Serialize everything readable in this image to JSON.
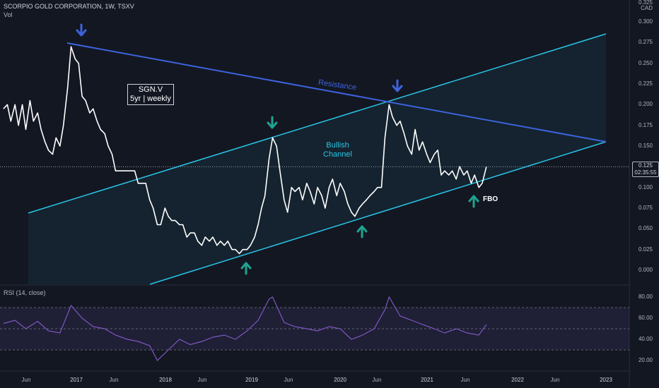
{
  "header": {
    "symbol": "SCORPIO GOLD CORPORATION, 1W, TSXV",
    "vol": "Vol"
  },
  "price_axis": {
    "currency": "CAD",
    "top_tick": "0.325",
    "ticks": [
      "0.300",
      "0.275",
      "0.250",
      "0.225",
      "0.200",
      "0.175",
      "0.150",
      "0.125",
      "0.100",
      "0.075",
      "0.050",
      "0.025",
      "0.000"
    ]
  },
  "price_tag": {
    "value": "0.125",
    "countdown": "02:35:55"
  },
  "annotations": {
    "box_ticker": "SGN.V",
    "box_sub": "5yr | weekly",
    "resistance": "Resistance",
    "channel_line1": "Bullish",
    "channel_line2": "Channel",
    "fbo": "FBO"
  },
  "rsi": {
    "title": "RSI (14, close)",
    "ticks": [
      "80.00",
      "60.00",
      "40.00",
      "20.00"
    ],
    "band_levels": [
      70,
      50,
      30
    ]
  },
  "x_axis": [
    {
      "label": "Jun",
      "year": false
    },
    {
      "label": "2017",
      "year": true
    },
    {
      "label": "Jun",
      "year": false
    },
    {
      "label": "2018",
      "year": true
    },
    {
      "label": "Jun",
      "year": false
    },
    {
      "label": "2019",
      "year": true
    },
    {
      "label": "Jun",
      "year": false
    },
    {
      "label": "2020",
      "year": true
    },
    {
      "label": "Jun",
      "year": false
    },
    {
      "label": "2021",
      "year": true
    },
    {
      "label": "Jun",
      "year": false
    },
    {
      "label": "2022",
      "year": true
    },
    {
      "label": "Jun",
      "year": false
    },
    {
      "label": "2023",
      "year": true
    }
  ],
  "colors": {
    "price_line": "#ffffff",
    "resistance": "#3d63dd",
    "channel": "#29c5e6",
    "arrow_down_blue": "#3d63dd",
    "arrow_teal": "#1fa38f",
    "rsi_line": "#7e57c2",
    "rsi_band": "#7e57c2"
  },
  "chart_data": {
    "type": "line",
    "title": "SCORPIO GOLD CORPORATION, 1W, TSXV",
    "ylim": [
      0.0,
      0.325
    ],
    "x_range": [
      "2016-04",
      "2023-02"
    ],
    "series": [
      {
        "name": "SGN.V",
        "points": [
          [
            "2016-04-15",
            0.195
          ],
          [
            "2016-05-01",
            0.2
          ],
          [
            "2016-05-15",
            0.18
          ],
          [
            "2016-06-01",
            0.2
          ],
          [
            "2016-06-15",
            0.175
          ],
          [
            "2016-07-01",
            0.2
          ],
          [
            "2016-07-15",
            0.17
          ],
          [
            "2016-08-01",
            0.205
          ],
          [
            "2016-08-15",
            0.18
          ],
          [
            "2016-09-01",
            0.19
          ],
          [
            "2016-09-15",
            0.17
          ],
          [
            "2016-10-01",
            0.155
          ],
          [
            "2016-10-15",
            0.145
          ],
          [
            "2016-11-01",
            0.14
          ],
          [
            "2016-11-15",
            0.16
          ],
          [
            "2016-12-01",
            0.15
          ],
          [
            "2016-12-15",
            0.175
          ],
          [
            "2017-01-01",
            0.22
          ],
          [
            "2017-01-15",
            0.27
          ],
          [
            "2017-02-01",
            0.255
          ],
          [
            "2017-02-15",
            0.25
          ],
          [
            "2017-03-01",
            0.21
          ],
          [
            "2017-03-15",
            0.205
          ],
          [
            "2017-04-01",
            0.19
          ],
          [
            "2017-04-15",
            0.195
          ],
          [
            "2017-05-01",
            0.18
          ],
          [
            "2017-05-15",
            0.17
          ],
          [
            "2017-06-01",
            0.165
          ],
          [
            "2017-06-15",
            0.15
          ],
          [
            "2017-07-01",
            0.14
          ],
          [
            "2017-07-15",
            0.12
          ],
          [
            "2017-08-01",
            0.12
          ],
          [
            "2017-08-15",
            0.12
          ],
          [
            "2017-09-01",
            0.12
          ],
          [
            "2017-09-15",
            0.12
          ],
          [
            "2017-10-01",
            0.12
          ],
          [
            "2017-10-15",
            0.105
          ],
          [
            "2017-11-01",
            0.105
          ],
          [
            "2017-11-15",
            0.105
          ],
          [
            "2017-12-01",
            0.085
          ],
          [
            "2017-12-15",
            0.075
          ],
          [
            "2018-01-01",
            0.055
          ],
          [
            "2018-01-15",
            0.055
          ],
          [
            "2018-02-01",
            0.075
          ],
          [
            "2018-02-15",
            0.065
          ],
          [
            "2018-03-01",
            0.06
          ],
          [
            "2018-03-15",
            0.06
          ],
          [
            "2018-04-01",
            0.055
          ],
          [
            "2018-04-15",
            0.055
          ],
          [
            "2018-05-01",
            0.04
          ],
          [
            "2018-05-15",
            0.045
          ],
          [
            "2018-06-01",
            0.045
          ],
          [
            "2018-06-15",
            0.035
          ],
          [
            "2018-07-01",
            0.03
          ],
          [
            "2018-07-15",
            0.04
          ],
          [
            "2018-08-01",
            0.035
          ],
          [
            "2018-08-15",
            0.04
          ],
          [
            "2018-09-01",
            0.03
          ],
          [
            "2018-09-15",
            0.035
          ],
          [
            "2018-10-01",
            0.03
          ],
          [
            "2018-10-15",
            0.035
          ],
          [
            "2018-11-01",
            0.025
          ],
          [
            "2018-11-15",
            0.025
          ],
          [
            "2018-12-01",
            0.02
          ],
          [
            "2018-12-15",
            0.025
          ],
          [
            "2019-01-01",
            0.025
          ],
          [
            "2019-01-15",
            0.03
          ],
          [
            "2019-02-01",
            0.04
          ],
          [
            "2019-02-15",
            0.055
          ],
          [
            "2019-03-01",
            0.075
          ],
          [
            "2019-03-15",
            0.09
          ],
          [
            "2019-04-01",
            0.135
          ],
          [
            "2019-04-15",
            0.16
          ],
          [
            "2019-05-01",
            0.15
          ],
          [
            "2019-05-15",
            0.12
          ],
          [
            "2019-06-01",
            0.085
          ],
          [
            "2019-06-15",
            0.07
          ],
          [
            "2019-07-01",
            0.1
          ],
          [
            "2019-07-15",
            0.095
          ],
          [
            "2019-08-01",
            0.1
          ],
          [
            "2019-08-15",
            0.085
          ],
          [
            "2019-09-01",
            0.105
          ],
          [
            "2019-09-15",
            0.095
          ],
          [
            "2019-10-01",
            0.08
          ],
          [
            "2019-10-15",
            0.1
          ],
          [
            "2019-11-01",
            0.09
          ],
          [
            "2019-11-15",
            0.075
          ],
          [
            "2019-12-01",
            0.1
          ],
          [
            "2019-12-15",
            0.11
          ],
          [
            "2020-01-01",
            0.09
          ],
          [
            "2020-01-15",
            0.105
          ],
          [
            "2020-02-01",
            0.095
          ],
          [
            "2020-02-15",
            0.08
          ],
          [
            "2020-03-01",
            0.07
          ],
          [
            "2020-03-15",
            0.065
          ],
          [
            "2020-04-01",
            0.075
          ],
          [
            "2020-04-15",
            0.08
          ],
          [
            "2020-05-01",
            0.085
          ],
          [
            "2020-05-15",
            0.09
          ],
          [
            "2020-06-01",
            0.095
          ],
          [
            "2020-06-15",
            0.1
          ],
          [
            "2020-07-01",
            0.1
          ],
          [
            "2020-07-15",
            0.16
          ],
          [
            "2020-08-01",
            0.2
          ],
          [
            "2020-08-15",
            0.185
          ],
          [
            "2020-09-01",
            0.175
          ],
          [
            "2020-09-15",
            0.18
          ],
          [
            "2020-10-01",
            0.165
          ],
          [
            "2020-10-15",
            0.15
          ],
          [
            "2020-11-01",
            0.14
          ],
          [
            "2020-11-15",
            0.17
          ],
          [
            "2020-12-01",
            0.145
          ],
          [
            "2020-12-15",
            0.155
          ],
          [
            "2021-01-01",
            0.14
          ],
          [
            "2021-01-15",
            0.13
          ],
          [
            "2021-02-01",
            0.14
          ],
          [
            "2021-02-15",
            0.145
          ],
          [
            "2021-03-01",
            0.115
          ],
          [
            "2021-03-15",
            0.12
          ],
          [
            "2021-04-01",
            0.115
          ],
          [
            "2021-04-15",
            0.12
          ],
          [
            "2021-05-01",
            0.11
          ],
          [
            "2021-05-15",
            0.125
          ],
          [
            "2021-06-01",
            0.115
          ],
          [
            "2021-06-15",
            0.12
          ],
          [
            "2021-07-01",
            0.105
          ],
          [
            "2021-07-15",
            0.115
          ],
          [
            "2021-08-01",
            0.1
          ],
          [
            "2021-08-15",
            0.105
          ],
          [
            "2021-09-01",
            0.125
          ]
        ]
      },
      {
        "name": "RSI (14, close)",
        "points": [
          [
            "2016-04-15",
            55
          ],
          [
            "2016-06-01",
            58
          ],
          [
            "2016-07-15",
            50
          ],
          [
            "2016-09-01",
            57
          ],
          [
            "2016-10-15",
            48
          ],
          [
            "2016-12-01",
            46
          ],
          [
            "2017-01-15",
            72
          ],
          [
            "2017-03-01",
            60
          ],
          [
            "2017-04-15",
            52
          ],
          [
            "2017-06-01",
            50
          ],
          [
            "2017-07-15",
            44
          ],
          [
            "2017-09-01",
            40
          ],
          [
            "2017-10-15",
            38
          ],
          [
            "2017-12-01",
            34
          ],
          [
            "2018-01-01",
            20
          ],
          [
            "2018-02-15",
            30
          ],
          [
            "2018-04-01",
            40
          ],
          [
            "2018-05-15",
            35
          ],
          [
            "2018-07-01",
            38
          ],
          [
            "2018-08-15",
            42
          ],
          [
            "2018-10-01",
            44
          ],
          [
            "2018-11-15",
            40
          ],
          [
            "2019-01-01",
            48
          ],
          [
            "2019-02-15",
            58
          ],
          [
            "2019-04-01",
            78
          ],
          [
            "2019-04-15",
            80
          ],
          [
            "2019-06-01",
            56
          ],
          [
            "2019-07-15",
            52
          ],
          [
            "2019-09-01",
            50
          ],
          [
            "2019-10-15",
            48
          ],
          [
            "2019-12-01",
            52
          ],
          [
            "2020-01-15",
            50
          ],
          [
            "2020-03-01",
            40
          ],
          [
            "2020-04-15",
            44
          ],
          [
            "2020-06-01",
            50
          ],
          [
            "2020-07-15",
            68
          ],
          [
            "2020-08-01",
            80
          ],
          [
            "2020-09-15",
            62
          ],
          [
            "2020-11-01",
            58
          ],
          [
            "2020-12-15",
            54
          ],
          [
            "2021-02-01",
            50
          ],
          [
            "2021-03-15",
            46
          ],
          [
            "2021-05-01",
            50
          ],
          [
            "2021-06-15",
            46
          ],
          [
            "2021-08-01",
            44
          ],
          [
            "2021-09-01",
            54
          ]
        ]
      }
    ]
  }
}
